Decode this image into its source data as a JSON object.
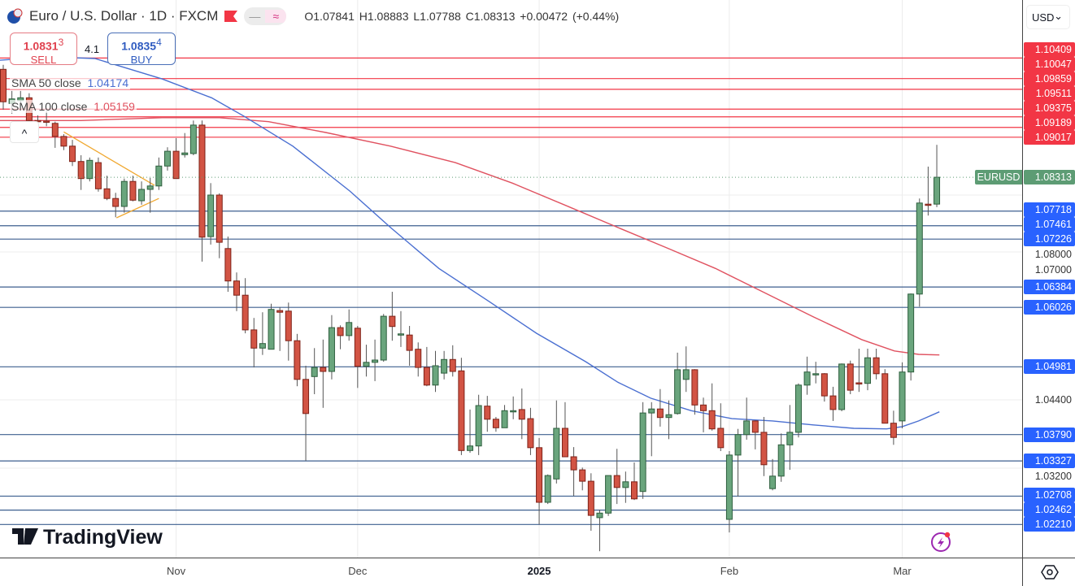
{
  "header": {
    "symbol_title": "Euro / U.S. Dollar · 1D · FXCM",
    "open": "O1.07841",
    "high": "H1.08883",
    "low": "L1.07788",
    "close": "C1.08313",
    "change": "+0.00472 (+0.44%)",
    "pill_left": "—",
    "pill_right": "≈"
  },
  "trade": {
    "sell_price": "1.0831",
    "sell_sup": "3",
    "sell_label": "SELL",
    "spread": "4.1",
    "buy_price": "1.0835",
    "buy_sup": "4",
    "buy_label": "BUY"
  },
  "indicators": [
    {
      "label": "SMA 50 close",
      "value": "1.04174",
      "color": "#4a6fd1"
    },
    {
      "label": "SMA 100 close",
      "value": "1.05159",
      "color": "#e05260"
    }
  ],
  "collapse_label": "^",
  "currency": "USD",
  "currency_chevron": "⌄",
  "logo_text": "TradingView",
  "last_price": {
    "symbol": "EURUSD",
    "value": "1.08313",
    "price": 1.08313,
    "color": "#5d9c74"
  },
  "colors": {
    "up": "#6aa57d",
    "up_border": "#2e5f3e",
    "down": "#d25444",
    "down_border": "#7e2218",
    "resistance": "#f23645",
    "support": "#2962ff"
  },
  "chart_data": {
    "type": "candlestick",
    "title": "Euro / U.S. Dollar · 1D · FXCM",
    "ylim": [
      1.0165,
      1.114
    ],
    "y_ticks": [
      "1.08000",
      "1.07000",
      "1.04400",
      "1.03200"
    ],
    "x_ticks": [
      {
        "label": "Nov",
        "bar": 20,
        "year": false
      },
      {
        "label": "Dec",
        "bar": 41,
        "year": false
      },
      {
        "label": "2025",
        "bar": 62,
        "year": true
      },
      {
        "label": "Feb",
        "bar": 84,
        "year": false
      },
      {
        "label": "Mar",
        "bar": 104,
        "year": false
      }
    ],
    "resistance_levels": [
      "1.10409",
      "1.10047",
      "1.09859",
      "1.09511",
      "1.09375",
      "1.09189",
      "1.09017"
    ],
    "support_levels": [
      "1.07718",
      "1.07461",
      "1.07226",
      "1.06384",
      "1.06026",
      "1.04981",
      "1.03790",
      "1.03327",
      "1.02708",
      "1.02462",
      "1.02210"
    ],
    "candles": [
      [
        1.1021,
        1.1029,
        1.095,
        1.0964
      ],
      [
        1.0961,
        1.0983,
        1.0943,
        1.0969
      ],
      [
        1.0966,
        1.0983,
        1.0957,
        1.0971
      ],
      [
        1.0971,
        1.0979,
        1.0929,
        1.0931
      ],
      [
        1.0931,
        1.094,
        1.0926,
        1.093
      ],
      [
        1.093,
        1.0947,
        1.0921,
        1.0929
      ],
      [
        1.0926,
        1.0929,
        1.0883,
        1.0903
      ],
      [
        1.0903,
        1.0907,
        1.0879,
        1.0886
      ],
      [
        1.0886,
        1.0897,
        1.0851,
        1.0859
      ],
      [
        1.0859,
        1.087,
        1.0809,
        1.0829
      ],
      [
        1.0829,
        1.0866,
        1.0824,
        1.0861
      ],
      [
        1.0857,
        1.0866,
        1.0806,
        1.0811
      ],
      [
        1.0811,
        1.0834,
        1.0791,
        1.0794
      ],
      [
        1.0794,
        1.0804,
        1.0761,
        1.078
      ],
      [
        1.078,
        1.0829,
        1.0769,
        1.0824
      ],
      [
        1.0824,
        1.0834,
        1.0789,
        1.0791
      ],
      [
        1.079,
        1.0824,
        1.0783,
        1.081
      ],
      [
        1.081,
        1.083,
        1.0769,
        1.0816
      ],
      [
        1.0816,
        1.0866,
        1.0809,
        1.0851
      ],
      [
        1.0851,
        1.0884,
        1.0843,
        1.0877
      ],
      [
        1.0877,
        1.09,
        1.0829,
        1.0829
      ],
      [
        1.0871,
        1.0909,
        1.0866,
        1.0874
      ],
      [
        1.0873,
        1.0931,
        1.087,
        1.0923
      ],
      [
        1.0923,
        1.0931,
        1.0683,
        1.0726
      ],
      [
        1.0727,
        1.0821,
        1.0713,
        1.08
      ],
      [
        1.08,
        1.0803,
        1.0689,
        1.0717
      ],
      [
        1.0706,
        1.0727,
        1.063,
        1.0649
      ],
      [
        1.0649,
        1.0664,
        1.0596,
        1.0624
      ],
      [
        1.0624,
        1.0654,
        1.0557,
        1.0563
      ],
      [
        1.0563,
        1.0584,
        1.0497,
        1.0531
      ],
      [
        1.0531,
        1.0594,
        1.0519,
        1.0539
      ],
      [
        1.0529,
        1.0609,
        1.0529,
        1.0599
      ],
      [
        1.0597,
        1.0603,
        1.0526,
        1.0594
      ],
      [
        1.0596,
        1.0611,
        1.0509,
        1.0544
      ],
      [
        1.0544,
        1.0556,
        1.0464,
        1.0476
      ],
      [
        1.0476,
        1.05,
        1.0333,
        1.0416
      ],
      [
        1.0481,
        1.0531,
        1.045,
        1.0497
      ],
      [
        1.0497,
        1.0546,
        1.0426,
        1.049
      ],
      [
        1.049,
        1.0589,
        1.0476,
        1.0567
      ],
      [
        1.0567,
        1.0571,
        1.0529,
        1.0553
      ],
      [
        1.0553,
        1.0599,
        1.0544,
        1.0576
      ],
      [
        1.0566,
        1.057,
        1.0461,
        1.0499
      ],
      [
        1.0499,
        1.0537,
        1.0481,
        1.0506
      ],
      [
        1.0506,
        1.0546,
        1.0473,
        1.051
      ],
      [
        1.051,
        1.0591,
        1.0507,
        1.0587
      ],
      [
        1.0587,
        1.063,
        1.0544,
        1.0569
      ],
      [
        1.0556,
        1.0596,
        1.0533,
        1.0556
      ],
      [
        1.0554,
        1.057,
        1.05,
        1.0527
      ],
      [
        1.0529,
        1.0541,
        1.0481,
        1.0497
      ],
      [
        1.0497,
        1.0533,
        1.0464,
        1.0466
      ],
      [
        1.0466,
        1.0526,
        1.0454,
        1.05
      ],
      [
        1.0487,
        1.0526,
        1.0476,
        1.0511
      ],
      [
        1.0511,
        1.0536,
        1.0481,
        1.049
      ],
      [
        1.0491,
        1.0514,
        1.0343,
        1.0351
      ],
      [
        1.0351,
        1.0423,
        1.0347,
        1.0359
      ],
      [
        1.0359,
        1.0449,
        1.0343,
        1.043
      ],
      [
        1.0429,
        1.0447,
        1.0384,
        1.0406
      ],
      [
        1.0406,
        1.041,
        1.0384,
        1.0391
      ],
      [
        1.0391,
        1.0431,
        1.0391,
        1.0421
      ],
      [
        1.0421,
        1.0446,
        1.0406,
        1.0421
      ],
      [
        1.0423,
        1.046,
        1.0371,
        1.0406
      ],
      [
        1.0407,
        1.0426,
        1.0343,
        1.0356
      ],
      [
        1.0356,
        1.0373,
        1.0221,
        1.026
      ],
      [
        1.026,
        1.0309,
        1.0257,
        1.0307
      ],
      [
        1.0301,
        1.0439,
        1.0293,
        1.039
      ],
      [
        1.039,
        1.0436,
        1.034,
        1.034
      ],
      [
        1.034,
        1.0357,
        1.0271,
        1.0317
      ],
      [
        1.0317,
        1.0321,
        1.0281,
        1.0297
      ],
      [
        1.0297,
        1.0311,
        1.021,
        1.0237
      ],
      [
        1.0233,
        1.0247,
        1.0174,
        1.0241
      ],
      [
        1.0241,
        1.0307,
        1.0236,
        1.0307
      ],
      [
        1.0307,
        1.0354,
        1.0257,
        1.0286
      ],
      [
        1.0286,
        1.0314,
        1.0259,
        1.0296
      ],
      [
        1.0296,
        1.033,
        1.0264,
        1.0266
      ],
      [
        1.0279,
        1.0436,
        1.0266,
        1.0417
      ],
      [
        1.0417,
        1.0436,
        1.0341,
        1.0424
      ],
      [
        1.0424,
        1.0459,
        1.0393,
        1.0409
      ],
      [
        1.0409,
        1.0439,
        1.0371,
        1.0414
      ],
      [
        1.0416,
        1.0523,
        1.0414,
        1.0493
      ],
      [
        1.0476,
        1.0534,
        1.0454,
        1.0493
      ],
      [
        1.0493,
        1.0494,
        1.0414,
        1.0431
      ],
      [
        1.0431,
        1.0444,
        1.0383,
        1.0421
      ],
      [
        1.0421,
        1.0469,
        1.0386,
        1.0389
      ],
      [
        1.039,
        1.0434,
        1.035,
        1.0356
      ],
      [
        1.023,
        1.035,
        1.0207,
        1.0343
      ],
      [
        1.0343,
        1.0389,
        1.027,
        1.0379
      ],
      [
        1.0379,
        1.0444,
        1.037,
        1.0403
      ],
      [
        1.0403,
        1.0404,
        1.0353,
        1.0383
      ],
      [
        1.0383,
        1.041,
        1.0306,
        1.0326
      ],
      [
        1.0284,
        1.0336,
        1.0281,
        1.0306
      ],
      [
        1.0306,
        1.0381,
        1.0296,
        1.0361
      ],
      [
        1.0361,
        1.0431,
        1.0317,
        1.0383
      ],
      [
        1.0383,
        1.0469,
        1.0374,
        1.0466
      ],
      [
        1.0466,
        1.0516,
        1.0449,
        1.0489
      ],
      [
        1.0486,
        1.0507,
        1.0469,
        1.0486
      ],
      [
        1.0486,
        1.0487,
        1.0437,
        1.0447
      ],
      [
        1.0447,
        1.0463,
        1.0403,
        1.0423
      ],
      [
        1.0423,
        1.0504,
        1.042,
        1.0503
      ],
      [
        1.0503,
        1.0509,
        1.045,
        1.0457
      ],
      [
        1.047,
        1.053,
        1.0454,
        1.0469
      ],
      [
        1.0469,
        1.053,
        1.0457,
        1.0514
      ],
      [
        1.0514,
        1.053,
        1.0476,
        1.0486
      ],
      [
        1.0486,
        1.0494,
        1.0399,
        1.0399
      ],
      [
        1.0399,
        1.0421,
        1.0361,
        1.0374
      ],
      [
        1.0403,
        1.0506,
        1.039,
        1.0489
      ],
      [
        1.0489,
        1.0627,
        1.0474,
        1.0626
      ],
      [
        1.0626,
        1.0794,
        1.0604,
        1.0786
      ],
      [
        1.0784,
        1.085,
        1.0764,
        1.0783
      ],
      [
        1.07841,
        1.08883,
        1.07788,
        1.08313
      ]
    ],
    "sma50": [
      [
        -0.4,
        1.1037
      ],
      [
        5.3,
        1.1043
      ],
      [
        10.6,
        1.104
      ],
      [
        18.4,
        1.1004
      ],
      [
        24.1,
        1.0971
      ],
      [
        27.8,
        1.0939
      ],
      [
        33.5,
        1.0886
      ],
      [
        40.1,
        1.0807
      ],
      [
        44.8,
        1.0743
      ],
      [
        50.4,
        1.0671
      ],
      [
        56.1,
        1.0614
      ],
      [
        61.7,
        1.0557
      ],
      [
        67.4,
        1.0507
      ],
      [
        71.1,
        1.0471
      ],
      [
        74.9,
        1.0443
      ],
      [
        79.6,
        1.0421
      ],
      [
        84.3,
        1.0407
      ],
      [
        89.0,
        1.0403
      ],
      [
        93.7,
        1.0396
      ],
      [
        98.4,
        1.039
      ],
      [
        102.2,
        1.0389
      ],
      [
        104.0,
        1.0393
      ],
      [
        105.9,
        1.0403
      ],
      [
        108.3,
        1.0419
      ]
    ],
    "sma100": [
      [
        -0.4,
        1.0931
      ],
      [
        9.0,
        1.0931
      ],
      [
        18.4,
        1.0936
      ],
      [
        25.0,
        1.0936
      ],
      [
        30.7,
        1.0929
      ],
      [
        37.3,
        1.091
      ],
      [
        44.8,
        1.0886
      ],
      [
        52.3,
        1.0857
      ],
      [
        58.9,
        1.0821
      ],
      [
        65.5,
        1.0779
      ],
      [
        71.1,
        1.0743
      ],
      [
        76.8,
        1.0707
      ],
      [
        82.4,
        1.0671
      ],
      [
        88.0,
        1.0629
      ],
      [
        93.7,
        1.0586
      ],
      [
        99.3,
        1.0546
      ],
      [
        103.1,
        1.0526
      ],
      [
        105.9,
        1.052
      ],
      [
        108.3,
        1.0519
      ]
    ],
    "triangle": {
      "upper": [
        [
          7.0,
          1.0911
        ],
        [
          17.5,
          1.0817
        ]
      ],
      "lower": [
        [
          13.1,
          1.076
        ],
        [
          18.0,
          1.0794
        ]
      ],
      "color": "#f0a830"
    }
  }
}
